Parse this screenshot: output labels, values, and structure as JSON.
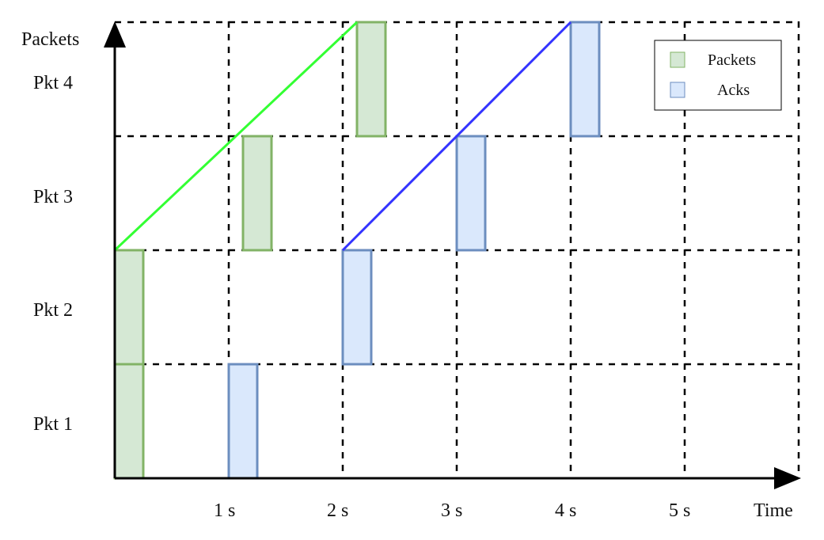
{
  "axes": {
    "y_title": "Packets",
    "x_title": "Time"
  },
  "rows": [
    "Pkt 1",
    "Pkt 2",
    "Pkt 3",
    "Pkt 4"
  ],
  "time_ticks": [
    "1 s",
    "2 s",
    "3 s",
    "4 s",
    "5 s"
  ],
  "legend": {
    "packets_label": "Packets",
    "acks_label": "Acks"
  },
  "colors": {
    "packet_fill": "#d5e8d4",
    "packet_stroke": "#82b366",
    "ack_fill": "#dae8fc",
    "ack_stroke": "#6c8ebf",
    "packet_slope": "#33ff33",
    "ack_slope": "#3333ff"
  },
  "packet_bars": [
    {
      "packet": 1,
      "start_s": 0.0,
      "duration_s": 0.25
    },
    {
      "packet": 2,
      "start_s": 0.0,
      "duration_s": 0.25
    },
    {
      "packet": 3,
      "start_s": 1.125,
      "duration_s": 0.25
    },
    {
      "packet": 4,
      "start_s": 2.125,
      "duration_s": 0.25
    }
  ],
  "ack_bars": [
    {
      "packet": 1,
      "start_s": 1.0,
      "duration_s": 0.25
    },
    {
      "packet": 2,
      "start_s": 2.0,
      "duration_s": 0.25
    },
    {
      "packet": 3,
      "start_s": 3.0,
      "duration_s": 0.25
    },
    {
      "packet": 4,
      "start_s": 4.0,
      "duration_s": 0.25
    }
  ],
  "slopes": [
    {
      "kind": "packet",
      "from_s": 0.0,
      "from_pkt": 2,
      "to_s": 2.125,
      "to_pkt": 4
    },
    {
      "kind": "ack",
      "from_s": 2.0,
      "from_pkt": 2,
      "to_s": 4.0,
      "to_pkt": 4
    }
  ]
}
